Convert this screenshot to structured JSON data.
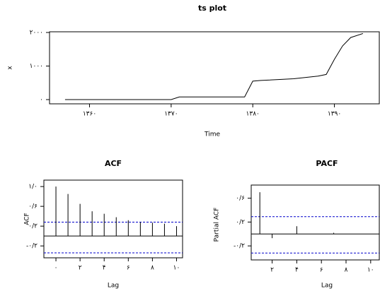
{
  "chart_data": [
    {
      "type": "line",
      "title": "ts plot",
      "x_label": "Time",
      "y_label": "x",
      "color": "#000000",
      "x": [
        1357,
        1370,
        1371,
        1379,
        1380,
        1381,
        1385,
        1388,
        1389,
        1390,
        1391,
        1392,
        1393.5
      ],
      "values": [
        0,
        0,
        80,
        80,
        550,
        570,
        620,
        700,
        750,
        1200,
        1600,
        1850,
        1970
      ],
      "xlim": [
        1355.1,
        1395.5
      ],
      "ylim": [
        -126,
        2021
      ],
      "xticks": [
        {
          "value": 1360,
          "label": "۱۳۶۰"
        },
        {
          "value": 1370,
          "label": "۱۳۷۰"
        },
        {
          "value": 1380,
          "label": "۱۳۸۰"
        },
        {
          "value": 1390,
          "label": "۱۳۹۰"
        }
      ],
      "yticks": [
        {
          "value": 0,
          "label": "۰"
        },
        {
          "value": 1000,
          "label": "۱۰۰۰"
        },
        {
          "value": 2000,
          "label": "۲۰۰۰"
        }
      ]
    },
    {
      "type": "stem",
      "title": "ACF",
      "x_label": "Lag",
      "y_label": "ACF",
      "color": "#000000",
      "x": [
        0,
        1,
        2,
        3,
        4,
        5,
        6,
        7,
        8,
        9,
        10
      ],
      "values": [
        1.0,
        0.85,
        0.65,
        0.5,
        0.45,
        0.38,
        0.32,
        0.28,
        0.27,
        0.25,
        0.2
      ],
      "confidence_bounds": [
        0.28,
        -0.34
      ],
      "confidence_color": "#0000cc",
      "xlim": [
        -1,
        10.5
      ],
      "ylim": [
        -0.44,
        1.13
      ],
      "xticks": [
        {
          "value": 0,
          "label": "۰"
        },
        {
          "value": 2,
          "label": "۲"
        },
        {
          "value": 4,
          "label": "۴"
        },
        {
          "value": 6,
          "label": "۶"
        },
        {
          "value": 8,
          "label": "۸"
        },
        {
          "value": 10,
          "label": "۱۰"
        }
      ],
      "yticks": [
        {
          "value": 1.0,
          "label": "۱/۰"
        },
        {
          "value": 0.6,
          "label": "۰/۶"
        },
        {
          "value": 0.2,
          "label": "۰/۲"
        },
        {
          "value": -0.2,
          "label": "-۰/۲"
        }
      ]
    },
    {
      "type": "stem",
      "title": "PACF",
      "x_label": "Lag",
      "y_label": "Partial ACF",
      "color": "#000000",
      "x": [
        1,
        2,
        4,
        7
      ],
      "values": [
        0.7,
        -0.07,
        0.13,
        0.02
      ],
      "confidence_bounds": [
        0.29,
        -0.32
      ],
      "confidence_color": "#0000cc",
      "xlim": [
        0.3,
        10.7
      ],
      "ylim": [
        -0.435,
        0.82
      ],
      "xticks": [
        {
          "value": 2,
          "label": "۲"
        },
        {
          "value": 4,
          "label": "۴"
        },
        {
          "value": 6,
          "label": "۶"
        },
        {
          "value": 8,
          "label": "۸"
        },
        {
          "value": 10,
          "label": "۱۰"
        }
      ],
      "yticks": [
        {
          "value": 0.6,
          "label": "۰/۶"
        },
        {
          "value": 0.2,
          "label": "۰/۲"
        },
        {
          "value": -0.2,
          "label": "-۰/۲"
        }
      ]
    }
  ]
}
